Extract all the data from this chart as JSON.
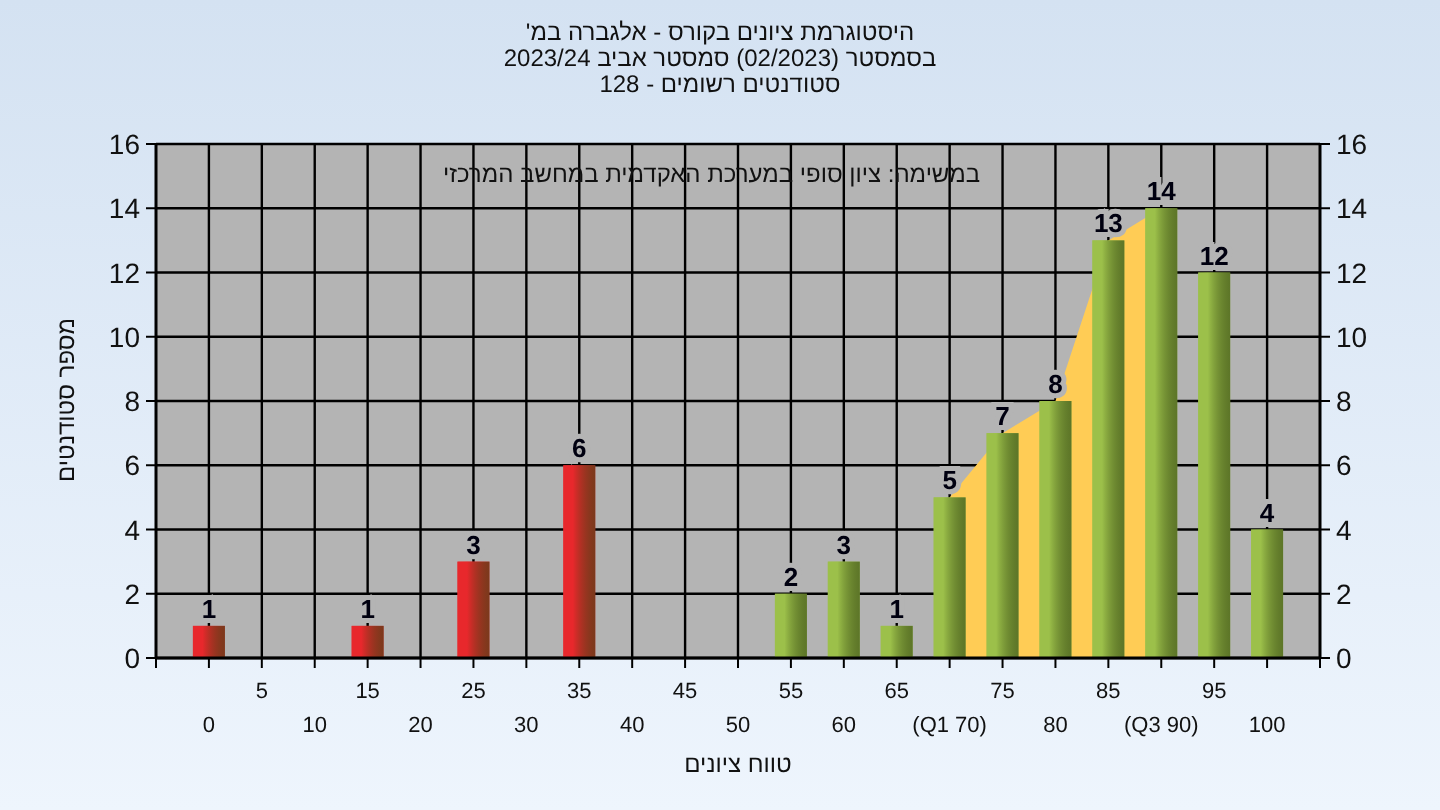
{
  "chart_data": {
    "type": "bar",
    "title": "היסטוגרמת ציונים בקורס - אלגברה במ'",
    "subtitle": "בסמסטר (02/2023) סמסטר אביב 2023/24\nסטודנטים רשומים - 128",
    "xlabel": "טווח ציונים",
    "ylabel": "מספר סטודנטים",
    "annotations": [
      "במשימה: ציון סופי במערכת האקדמית במחשב המרכזי"
    ],
    "categories": [
      "0",
      "5",
      "10",
      "15",
      "20",
      "25",
      "30",
      "35",
      "40",
      "45",
      "50",
      "55",
      "60",
      "65",
      "(Q1 70)",
      "75",
      "80",
      "85",
      "(Q3 90)",
      "95",
      "100"
    ],
    "series": [
      {
        "type": "area",
        "color": "#ffcc55",
        "values": [
          null,
          null,
          null,
          null,
          null,
          null,
          null,
          null,
          null,
          null,
          null,
          null,
          null,
          null,
          5,
          7,
          8,
          13,
          14,
          null,
          null
        ]
      },
      {
        "type": "bar",
        "colors": [
          "#e8282c",
          "#e8282c",
          "#e8282c",
          "#e8282c",
          "#e8282c",
          "#e8282c",
          "#e8282c",
          "#e8282c",
          "#e8282c",
          "#e8282c",
          "#e8282c",
          "#9cc04a",
          "#9cc04a",
          "#9cc04a",
          "#9cc04a",
          "#9cc04a",
          "#9cc04a",
          "#9cc04a",
          "#9cc04a",
          "#9cc04a",
          "#9cc04a"
        ],
        "values": [
          1,
          0,
          0,
          1,
          0,
          3,
          0,
          6,
          0,
          0,
          0,
          2,
          3,
          1,
          5,
          7,
          8,
          13,
          14,
          12,
          4
        ],
        "value_labels": [
          "1",
          null,
          null,
          "1",
          null,
          "3",
          null,
          "6",
          null,
          null,
          null,
          "2",
          "3",
          "1",
          "5",
          "7",
          "8",
          "13",
          "14",
          "12",
          "4"
        ]
      }
    ],
    "ylim": [
      0,
      16
    ],
    "yticks": [
      0,
      2,
      4,
      6,
      8,
      10,
      12,
      14,
      16
    ],
    "y2lim": [
      0,
      16
    ],
    "y2ticks": [
      0,
      2,
      4,
      6,
      8,
      10,
      12,
      14,
      16
    ],
    "grid": true
  }
}
